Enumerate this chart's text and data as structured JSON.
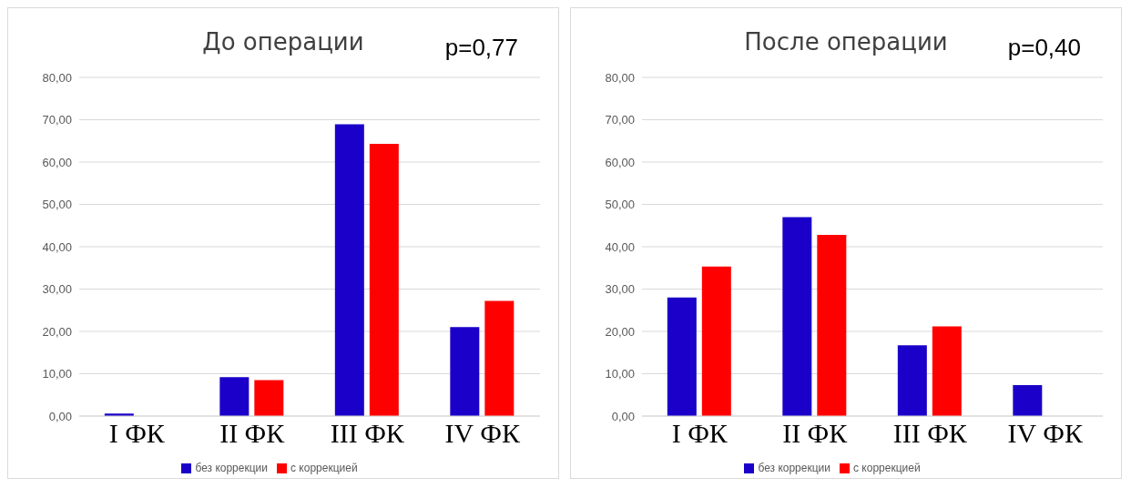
{
  "chart_data": [
    {
      "type": "bar",
      "title": "До операции",
      "annotations": [
        "p=0,77"
      ],
      "categories": [
        "I ФК",
        "II ФК",
        "III ФК",
        "IV ФК"
      ],
      "series": [
        {
          "name": "без коррекции",
          "color": "#1a00c8",
          "values": [
            0.6,
            9.2,
            68.9,
            21.0
          ]
        },
        {
          "name": "с коррекцией",
          "color": "#ff0000",
          "values": [
            0,
            8.5,
            64.3,
            27.2
          ]
        }
      ],
      "ylim": [
        0,
        80
      ],
      "yticks": [
        {
          "value": 0,
          "label": "0,00"
        },
        {
          "value": 10,
          "label": "10,00"
        },
        {
          "value": 20,
          "label": "20,00"
        },
        {
          "value": 30,
          "label": "30,00"
        },
        {
          "value": 40,
          "label": "40,00"
        },
        {
          "value": 50,
          "label": "50,00"
        },
        {
          "value": 60,
          "label": "60,00"
        },
        {
          "value": 70,
          "label": "70,00"
        },
        {
          "value": 80,
          "label": "80,00"
        }
      ],
      "grid": "y",
      "legend": "bottom"
    },
    {
      "type": "bar",
      "title": "После операции",
      "annotations": [
        "p=0,40"
      ],
      "categories": [
        "I ФК",
        "II ФК",
        "III ФК",
        "IV ФК"
      ],
      "series": [
        {
          "name": "без коррекции",
          "color": "#1a00c8",
          "values": [
            28.0,
            47.0,
            16.7,
            7.3
          ]
        },
        {
          "name": "с коррекцией",
          "color": "#ff0000",
          "values": [
            35.3,
            42.8,
            21.2,
            0
          ]
        }
      ],
      "ylim": [
        0,
        80
      ],
      "yticks": [
        {
          "value": 0,
          "label": "0,00"
        },
        {
          "value": 10,
          "label": "10,00"
        },
        {
          "value": 20,
          "label": "20,00"
        },
        {
          "value": 30,
          "label": "30,00"
        },
        {
          "value": 40,
          "label": "40,00"
        },
        {
          "value": 50,
          "label": "50,00"
        },
        {
          "value": 60,
          "label": "60,00"
        },
        {
          "value": 70,
          "label": "70,00"
        },
        {
          "value": 80,
          "label": "80,00"
        }
      ],
      "grid": "y",
      "legend": "bottom"
    }
  ]
}
